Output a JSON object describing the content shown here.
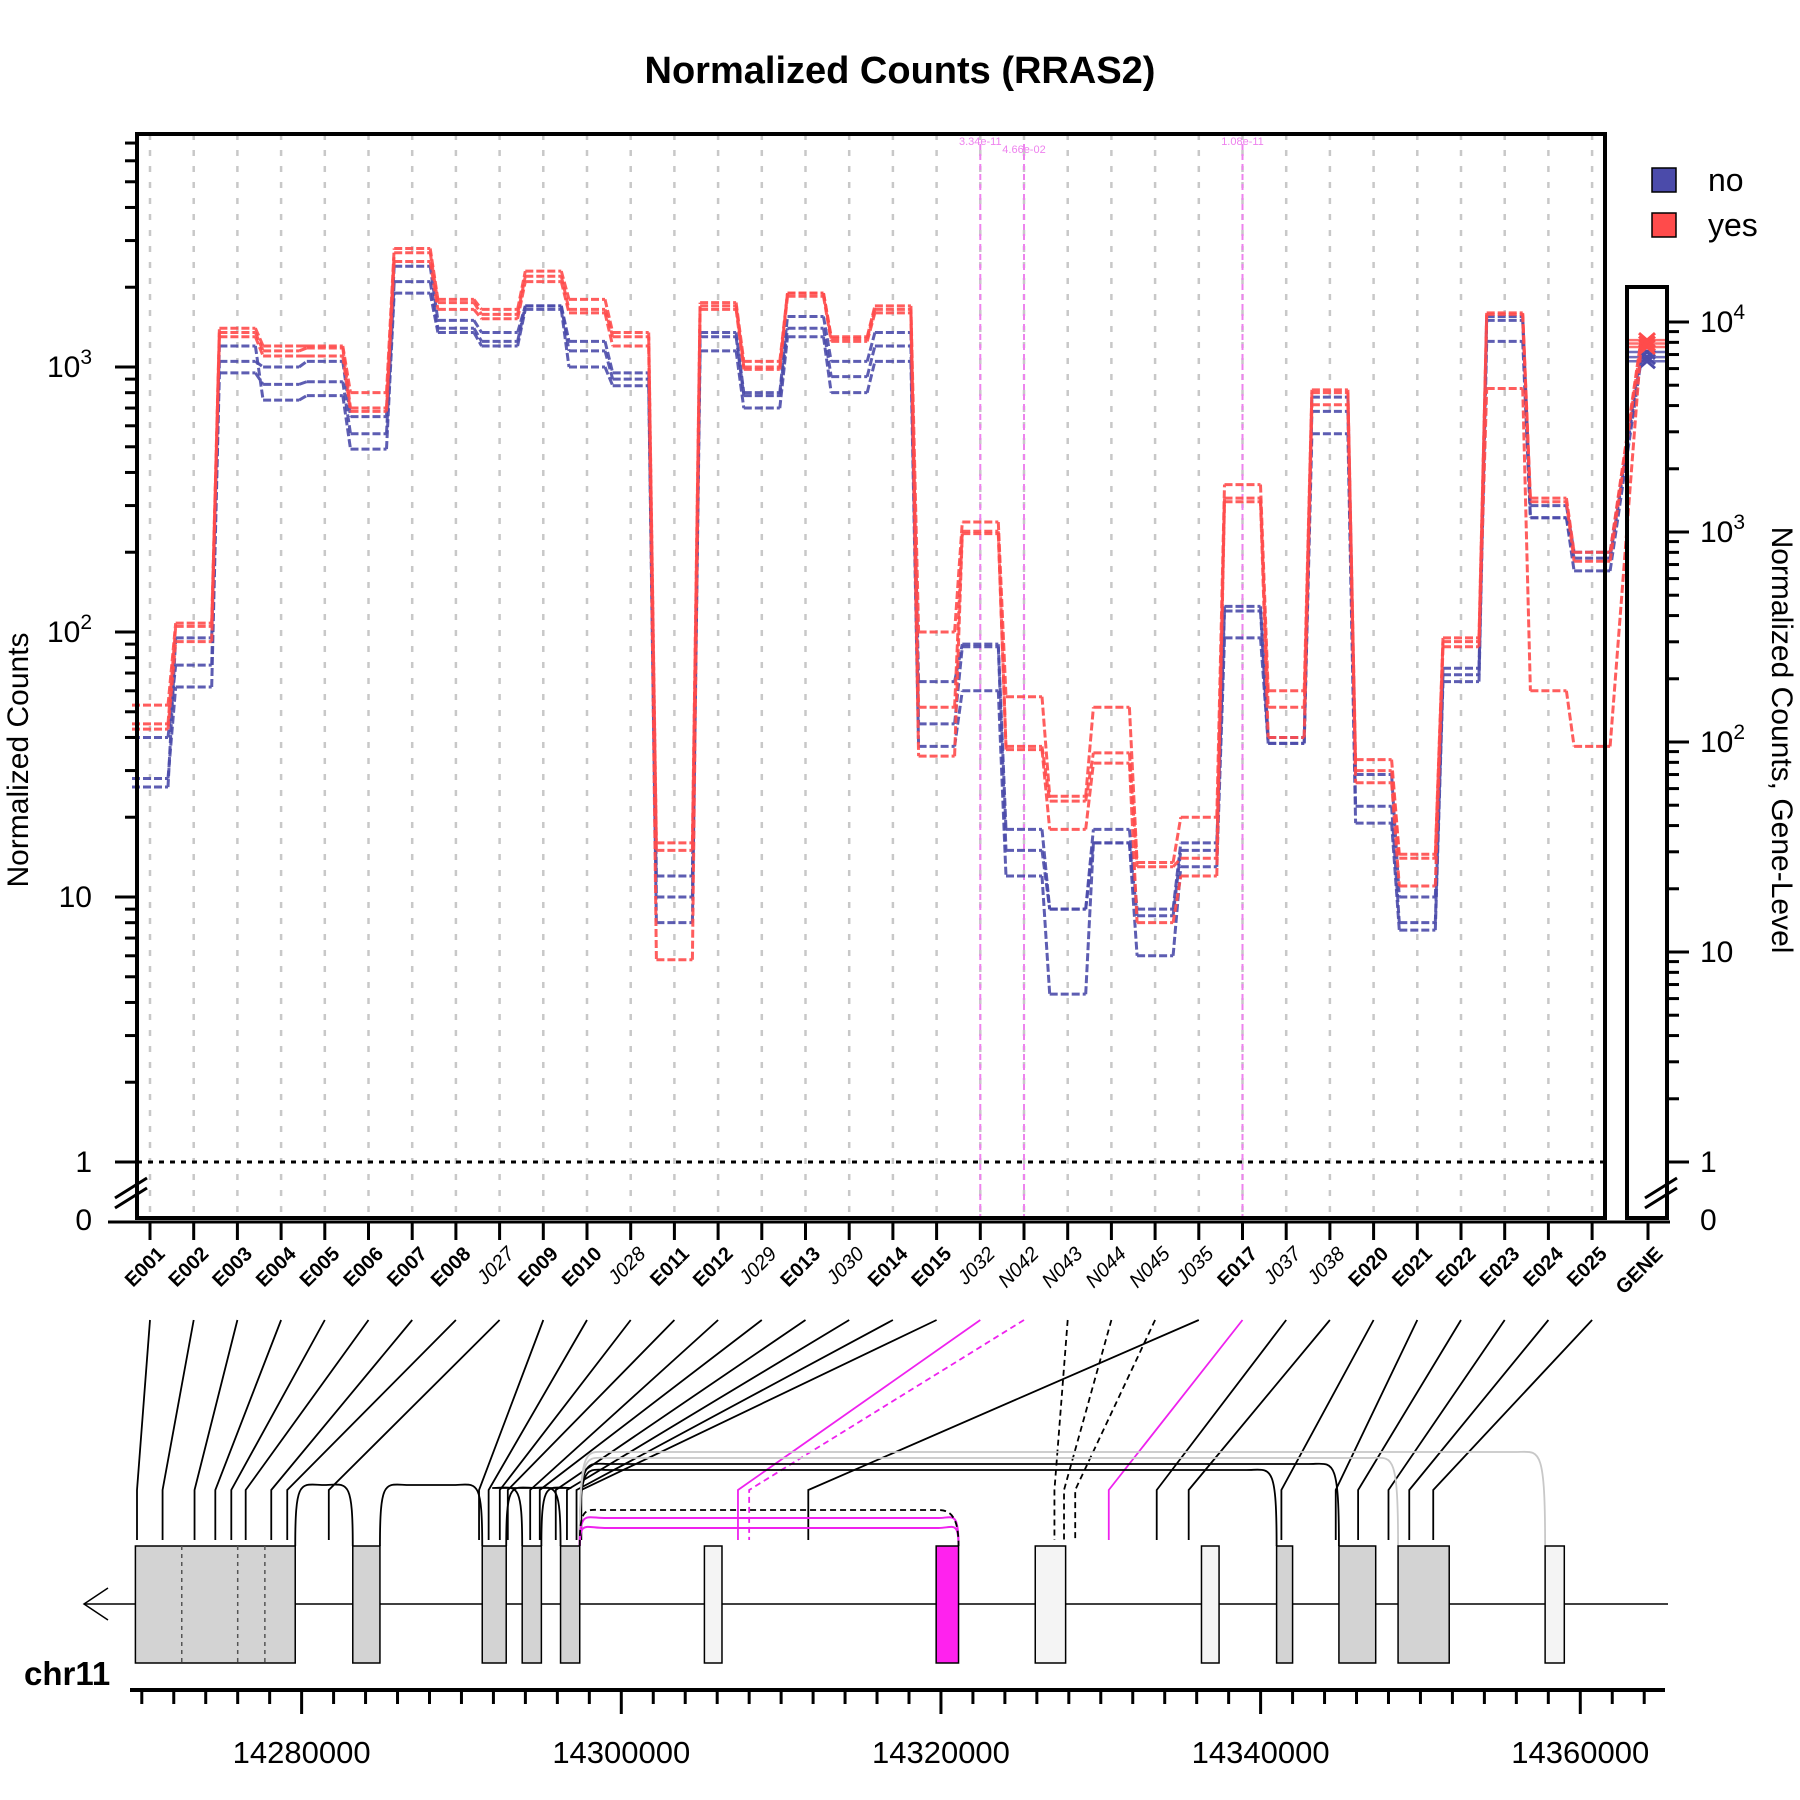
{
  "chart_data": {
    "type": "line",
    "title": "Normalized Counts (RRAS2)",
    "ylabel": "Normalized Counts",
    "y2label": "Normalized Counts, Gene-Level",
    "yscale": "log",
    "ylim": [
      1,
      4000
    ],
    "y2lim": [
      1,
      12000
    ],
    "y_ticks": [
      "10^3",
      "10^2",
      "10",
      "1",
      "0"
    ],
    "y2_ticks": [
      "10^4",
      "10^3",
      "10^2",
      "10",
      "1",
      "0"
    ],
    "legend": {
      "placement": "top-right",
      "entries": [
        {
          "name": "no",
          "color": "#4b4baa"
        },
        {
          "name": "yes",
          "color": "#ff4b4b"
        }
      ]
    },
    "features": [
      {
        "id": "E001",
        "style": "bold",
        "kind": "exon"
      },
      {
        "id": "E002",
        "style": "bold",
        "kind": "exon"
      },
      {
        "id": "E003",
        "style": "bold",
        "kind": "exon"
      },
      {
        "id": "E004",
        "style": "bold",
        "kind": "exon"
      },
      {
        "id": "E005",
        "style": "bold",
        "kind": "exon"
      },
      {
        "id": "E006",
        "style": "bold",
        "kind": "exon"
      },
      {
        "id": "E007",
        "style": "bold",
        "kind": "exon"
      },
      {
        "id": "E008",
        "style": "bold",
        "kind": "exon"
      },
      {
        "id": "J027",
        "style": "italic",
        "kind": "junction"
      },
      {
        "id": "E009",
        "style": "bold",
        "kind": "exon"
      },
      {
        "id": "E010",
        "style": "bold",
        "kind": "exon"
      },
      {
        "id": "J028",
        "style": "italic",
        "kind": "junction"
      },
      {
        "id": "E011",
        "style": "bold",
        "kind": "exon"
      },
      {
        "id": "E012",
        "style": "bold",
        "kind": "exon"
      },
      {
        "id": "J029",
        "style": "italic",
        "kind": "junction"
      },
      {
        "id": "E013",
        "style": "bold",
        "kind": "exon"
      },
      {
        "id": "J030",
        "style": "italic",
        "kind": "junction"
      },
      {
        "id": "E014",
        "style": "bold",
        "kind": "exon"
      },
      {
        "id": "E015",
        "style": "bold",
        "kind": "exon"
      },
      {
        "id": "J032",
        "style": "italic",
        "kind": "junction"
      },
      {
        "id": "N042",
        "style": "italic",
        "kind": "novel"
      },
      {
        "id": "N043",
        "style": "italic",
        "kind": "novel"
      },
      {
        "id": "N044",
        "style": "italic",
        "kind": "novel"
      },
      {
        "id": "N045",
        "style": "italic",
        "kind": "novel"
      },
      {
        "id": "J035",
        "style": "italic",
        "kind": "junction"
      },
      {
        "id": "E017",
        "style": "bold",
        "kind": "exon"
      },
      {
        "id": "J037",
        "style": "italic",
        "kind": "junction"
      },
      {
        "id": "J038",
        "style": "italic",
        "kind": "junction"
      },
      {
        "id": "E020",
        "style": "bold",
        "kind": "exon"
      },
      {
        "id": "E021",
        "style": "bold",
        "kind": "exon"
      },
      {
        "id": "E022",
        "style": "bold",
        "kind": "exon"
      },
      {
        "id": "E023",
        "style": "bold",
        "kind": "exon"
      },
      {
        "id": "E024",
        "style": "bold",
        "kind": "exon"
      },
      {
        "id": "E025",
        "style": "bold",
        "kind": "exon"
      }
    ],
    "gene_label": "GENE",
    "series": [
      {
        "name": "no",
        "color": "#4b4baa",
        "values": [
          [
            40,
            28,
            26
          ],
          [
            75,
            62,
            95
          ],
          [
            1050,
            950,
            1200
          ],
          [
            1000,
            860,
            750
          ],
          [
            1050,
            880,
            780
          ],
          [
            650,
            560,
            490
          ],
          [
            2400,
            2100,
            1900
          ],
          [
            1500,
            1400,
            1350
          ],
          [
            1350,
            1250,
            1200
          ],
          [
            1700,
            1700,
            1650
          ],
          [
            1250,
            1150,
            1000
          ],
          [
            950,
            900,
            850
          ],
          [
            12,
            10,
            8
          ],
          [
            1350,
            1300,
            1150
          ],
          [
            800,
            780,
            700
          ],
          [
            1550,
            1400,
            1300
          ],
          [
            1050,
            920,
            800
          ],
          [
            1350,
            1200,
            1050
          ],
          [
            65,
            45,
            37
          ],
          [
            90,
            88,
            60
          ],
          [
            18,
            15,
            12
          ],
          [
            9,
            9,
            4.3
          ],
          [
            18,
            16,
            16
          ],
          [
            9,
            8.5,
            6
          ],
          [
            16,
            15,
            13
          ],
          [
            125,
            120,
            95
          ],
          [
            40,
            38,
            38
          ],
          [
            770,
            680,
            560
          ],
          [
            29,
            22,
            19
          ],
          [
            10,
            8,
            7.5
          ],
          [
            73,
            69,
            65
          ],
          [
            1550,
            1500,
            1250
          ],
          [
            300,
            270,
            270
          ],
          [
            200,
            190,
            170
          ]
        ],
        "gene": [
          7200,
          6800,
          6500
        ]
      },
      {
        "name": "yes",
        "color": "#ff4b4b",
        "values": [
          [
            53,
            45,
            43
          ],
          [
            108,
            105,
            92
          ],
          [
            1400,
            1350,
            1300
          ],
          [
            1200,
            1150,
            1100
          ],
          [
            1200,
            1180,
            1100
          ],
          [
            800,
            700,
            680
          ],
          [
            2800,
            2700,
            2500
          ],
          [
            1800,
            1750,
            1650
          ],
          [
            1650,
            1580,
            1520
          ],
          [
            2300,
            2200,
            2100
          ],
          [
            1800,
            1650,
            1600
          ],
          [
            1350,
            1300,
            1200
          ],
          [
            16,
            15,
            5.8
          ],
          [
            1750,
            1700,
            1650
          ],
          [
            1050,
            1000,
            980
          ],
          [
            1900,
            1900,
            1850
          ],
          [
            1300,
            1280,
            1250
          ],
          [
            1700,
            1650,
            1600
          ],
          [
            100,
            52,
            34
          ],
          [
            260,
            240,
            235
          ],
          [
            57,
            37,
            36
          ],
          [
            24,
            23,
            18
          ],
          [
            52,
            35,
            32
          ],
          [
            13.5,
            13,
            8
          ],
          [
            20,
            14,
            12
          ],
          [
            360,
            320,
            310
          ],
          [
            60,
            52,
            40
          ],
          [
            820,
            800,
            720
          ],
          [
            33,
            30,
            27
          ],
          [
            14.5,
            14,
            11
          ],
          [
            95,
            92,
            88
          ],
          [
            1600,
            1580,
            830
          ],
          [
            320,
            310,
            60
          ],
          [
            200,
            185,
            37
          ]
        ],
        "gene": [
          8200,
          7900,
          7600
        ]
      }
    ],
    "significant": [
      {
        "feature": "J032",
        "pvalue": "3.34e-11"
      },
      {
        "feature": "N042",
        "pvalue": "4.66e-02"
      },
      {
        "feature": "E017",
        "pvalue": "1.08e-11"
      }
    ],
    "genomic_axis": {
      "chromosome": "chr11",
      "tick_labels": [
        "14280000",
        "14300000",
        "14320000",
        "14340000",
        "14360000"
      ],
      "range": [
        14269700,
        14364800
      ]
    },
    "exons": [
      {
        "start": 14269600,
        "end": 14279600,
        "shade": "grey"
      },
      {
        "start": 14283200,
        "end": 14284900,
        "shade": "grey"
      },
      {
        "start": 14291300,
        "end": 14292800,
        "shade": "grey"
      },
      {
        "start": 14293800,
        "end": 14295000,
        "shade": "grey"
      },
      {
        "start": 14296200,
        "end": 14297400,
        "shade": "grey"
      },
      {
        "start": 14305200,
        "end": 14306300,
        "shade": "light"
      },
      {
        "start": 14319700,
        "end": 14321100,
        "shade": "magenta"
      },
      {
        "start": 14325900,
        "end": 14327800,
        "shade": "light"
      },
      {
        "start": 14336300,
        "end": 14337400,
        "shade": "light"
      },
      {
        "start": 14341000,
        "end": 14342000,
        "shade": "grey"
      },
      {
        "start": 14344900,
        "end": 14347200,
        "shade": "grey"
      },
      {
        "start": 14348600,
        "end": 14351800,
        "shade": "grey"
      },
      {
        "start": 14357800,
        "end": 14359000,
        "shade": "light"
      }
    ],
    "strand": "minus"
  }
}
